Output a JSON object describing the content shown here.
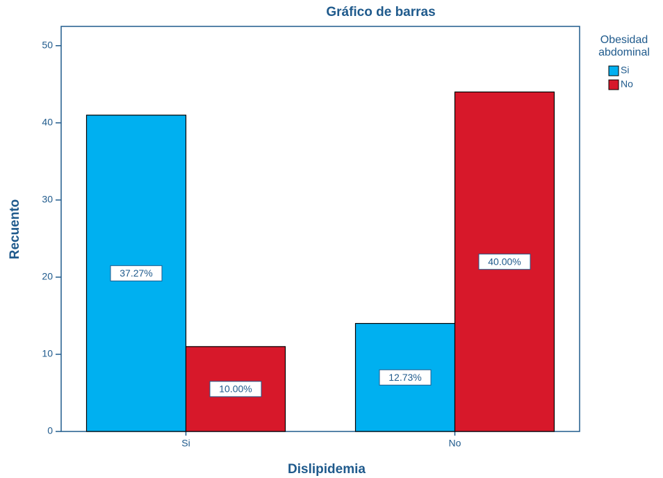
{
  "chart_data": {
    "type": "bar",
    "title": "Gráfico de barras",
    "x_label": "Dislipidemia",
    "y_label": "Recuento",
    "legend_title": [
      "Obesidad",
      "abdominal"
    ],
    "categories": [
      "Si",
      "No"
    ],
    "series": [
      {
        "name": "Si",
        "color": "#00b0f0",
        "values": [
          41,
          14
        ],
        "percent_labels": [
          "37.27%",
          "12.73%"
        ]
      },
      {
        "name": "No",
        "color": "#d7182a",
        "values": [
          11,
          44
        ],
        "percent_labels": [
          "10.00%",
          "40.00%"
        ]
      }
    ],
    "ylim": [
      0,
      52.5
    ],
    "yticks": [
      0,
      10,
      20,
      30,
      40,
      50
    ],
    "grid": false,
    "legend": "right"
  }
}
